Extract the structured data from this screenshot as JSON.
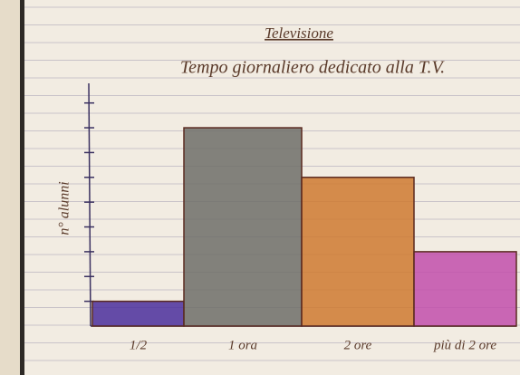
{
  "chart_data": {
    "type": "bar",
    "title": "Televisione",
    "subtitle": "Tempo giornaliero dedicato alla T.V.",
    "y_label": "n° alunni",
    "categories": [
      "1/2",
      "1 ora",
      "2 ore",
      "più di 2 ore"
    ],
    "series": [
      {
        "name": "alunni",
        "values": [
          1,
          8,
          6,
          3
        ]
      }
    ],
    "colors": [
      "#4b2f9c",
      "#6e6e68",
      "#cf7a30",
      "#c24fab"
    ],
    "ylim": [
      0,
      9.5
    ],
    "yticks": [
      1,
      2,
      3,
      4,
      5,
      6,
      7,
      8,
      9
    ]
  }
}
